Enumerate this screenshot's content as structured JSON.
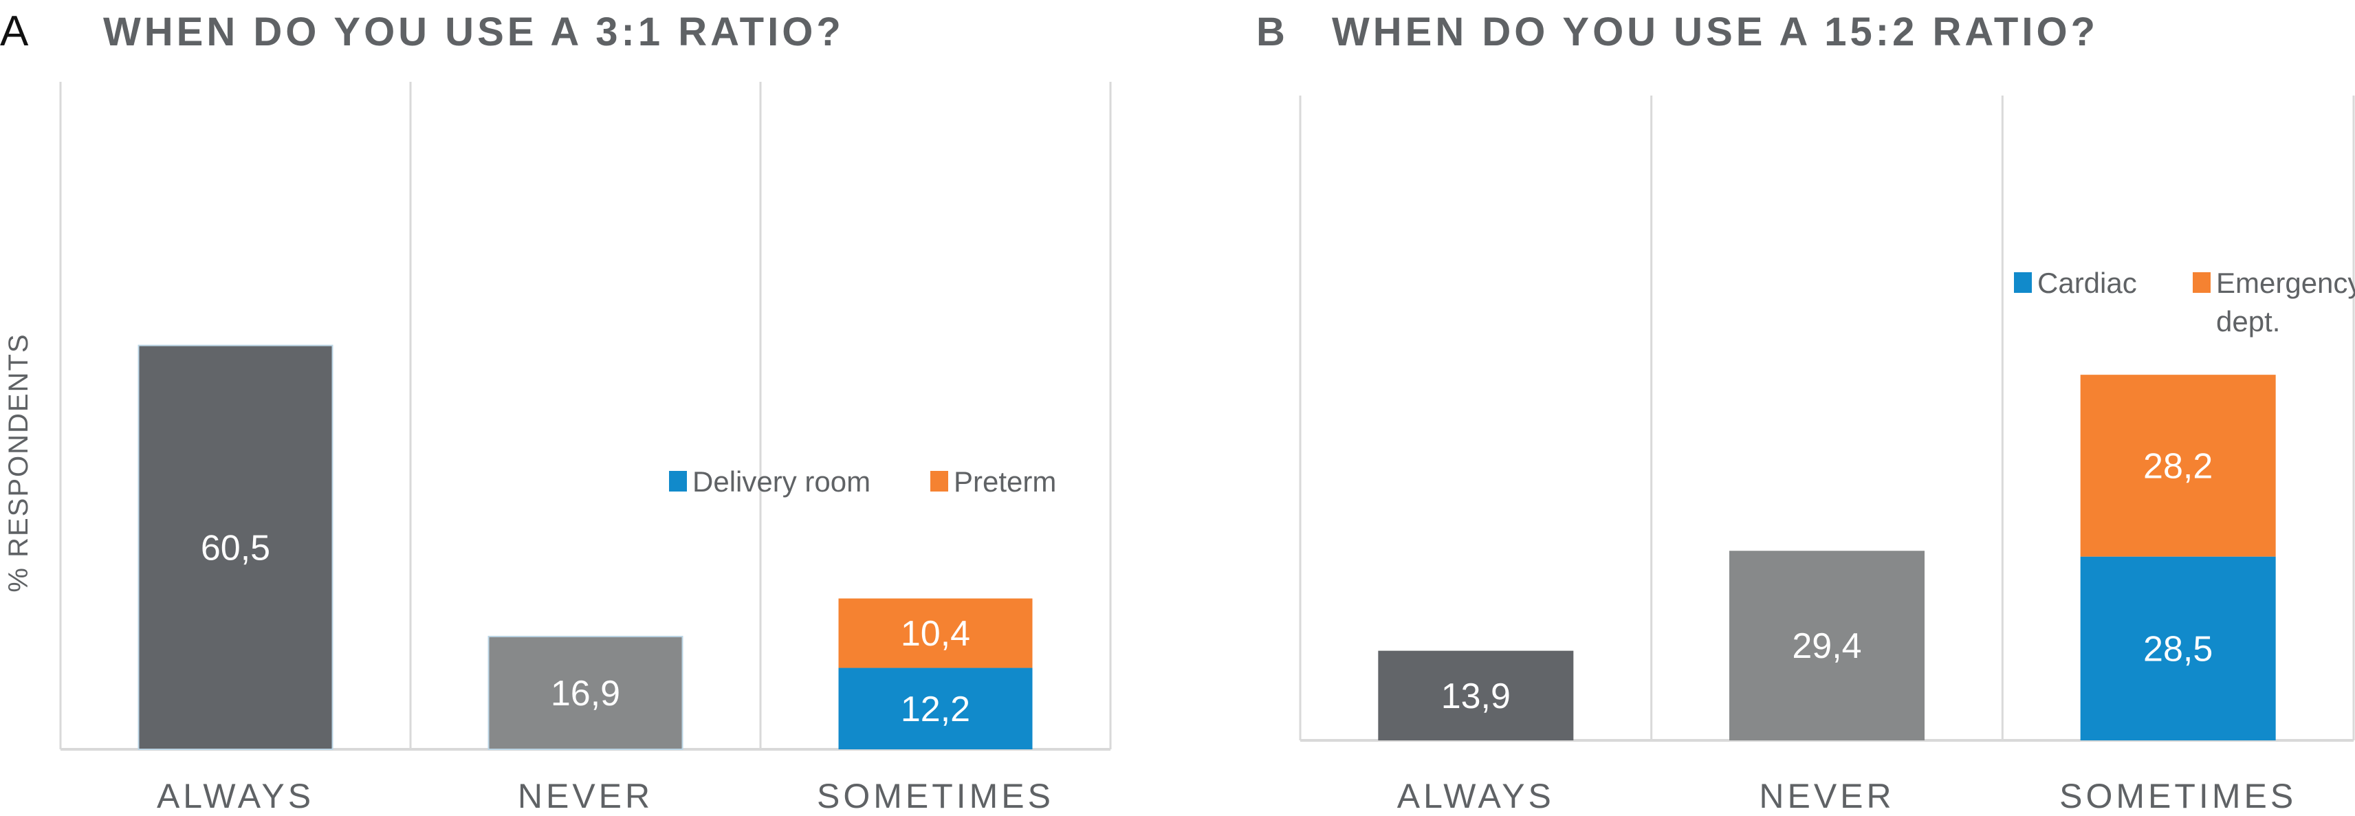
{
  "chart_data": [
    {
      "type": "bar",
      "panel": "A",
      "title": "WHEN DO YOU USE A 3:1 RATIO?",
      "ylabel": "% RESPONDENTS",
      "xlabel": "",
      "ylim": [
        0,
        100
      ],
      "grid": false,
      "categories": [
        "ALWAYS",
        "NEVER",
        "SOMETIMES"
      ],
      "values": [
        60.5,
        16.9,
        null
      ],
      "labels": [
        "60,5",
        "16,9",
        null
      ],
      "stack": {
        "category": "SOMETIMES",
        "series": [
          {
            "name": "Delivery room",
            "value": 12.2,
            "label": "12,2",
            "color": "#118acb"
          },
          {
            "name": "Preterm",
            "value": 10.4,
            "label": "10,4",
            "color": "#f58231"
          }
        ]
      },
      "bar_colors": [
        "#626569",
        "#87898a"
      ],
      "legend_placement": "center-right"
    },
    {
      "type": "bar",
      "panel": "B",
      "title": "WHEN DO YOU USE A 15:2 RATIO?",
      "ylabel": "",
      "xlabel": "",
      "ylim": [
        0,
        100
      ],
      "grid": false,
      "categories": [
        "ALWAYS",
        "NEVER",
        "SOMETIMES"
      ],
      "values": [
        13.9,
        29.4,
        null
      ],
      "labels": [
        "13,9",
        "29,4",
        null
      ],
      "stack": {
        "category": "SOMETIMES",
        "series": [
          {
            "name": "Cardiac",
            "value": 28.5,
            "label": "28,5",
            "color": "#118acb"
          },
          {
            "name": "Emergency dept.",
            "name_lines": [
              "Emergency",
              "dept."
            ],
            "value": 28.2,
            "label": "28,2",
            "color": "#f58231"
          }
        ]
      },
      "bar_colors": [
        "#626569",
        "#87898a"
      ],
      "legend_placement": "upper-right"
    }
  ]
}
